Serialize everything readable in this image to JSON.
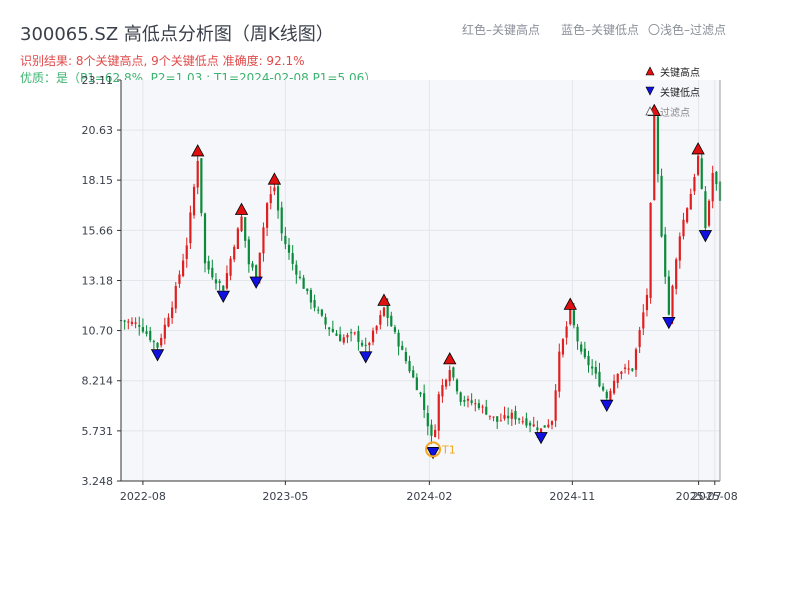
{
  "header": {
    "title": "300065.SZ 高低点分析图（周K线图）",
    "result_line": "识别结果: 8个关键高点, 9个关键低点   准确度: 92.1%",
    "quality_line": "优质：是（P1=62.8%, P2=1.03 ; T1=2024-02-08 P1=5.06）",
    "legend_high": "红色–关键高点",
    "legend_low": "蓝色–关键低点",
    "legend_filtered": "〇浅色–过滤点"
  },
  "colors": {
    "up": "#e02020",
    "down": "#0a8a3a",
    "high_marker": "#e01010",
    "low_marker": "#1010e0",
    "t1": "#f5a623",
    "plot_bg": "#f5f7fa",
    "grid": "#e3e6ea"
  },
  "chart_data": {
    "type": "candlestick",
    "title": "300065.SZ 高低点分析图（周K线图）",
    "xlabel": "",
    "ylabel": "",
    "x_range": [
      "2022-06-20",
      "2025-08-11"
    ],
    "ylim": [
      3.248,
      23.11
    ],
    "y_ticks": [
      3.248,
      5.731,
      8.214,
      10.7,
      13.18,
      15.66,
      18.15,
      20.63,
      23.11
    ],
    "y_tick_labels": [
      "3.248",
      "5.731",
      "8.214",
      "10.70",
      "13.18",
      "15.66",
      "18.15",
      "20.63",
      "23.11"
    ],
    "x_ticks": [
      {
        "date": "2022-08-01",
        "label": "2022-08"
      },
      {
        "date": "2023-05-01",
        "label": "2023-05"
      },
      {
        "date": "2024-02-01",
        "label": "2024-02"
      },
      {
        "date": "2024-11-01",
        "label": "2024-11"
      },
      {
        "date": "2025-07-01",
        "label": "2025-07"
      },
      {
        "date": "2025-08-01",
        "label": "2025-08"
      }
    ],
    "grid": true,
    "legend_position": "top-right",
    "legend": [
      "关键高点",
      "关键低点",
      "过滤点"
    ],
    "close_path": [
      [
        "2022-06-20",
        11.2
      ],
      [
        "2022-07-25",
        11.0
      ],
      [
        "2022-08-29",
        9.9
      ],
      [
        "2022-09-26",
        12.0
      ],
      [
        "2022-10-24",
        15.0
      ],
      [
        "2022-11-14",
        19.2
      ],
      [
        "2022-11-28",
        14.0
      ],
      [
        "2022-12-19",
        13.2
      ],
      [
        "2023-01-02",
        12.8
      ],
      [
        "2023-01-23",
        15.0
      ],
      [
        "2023-02-06",
        16.3
      ],
      [
        "2023-02-20",
        14.0
      ],
      [
        "2023-03-06",
        13.5
      ],
      [
        "2023-03-27",
        17.0
      ],
      [
        "2023-04-10",
        17.8
      ],
      [
        "2023-04-24",
        15.5
      ],
      [
        "2023-05-15",
        14.0
      ],
      [
        "2023-06-12",
        12.5
      ],
      [
        "2023-07-17",
        11.0
      ],
      [
        "2023-08-14",
        10.3
      ],
      [
        "2023-09-11",
        10.5
      ],
      [
        "2023-10-02",
        9.8
      ],
      [
        "2023-10-23",
        10.9
      ],
      [
        "2023-11-06",
        11.8
      ],
      [
        "2023-11-27",
        10.5
      ],
      [
        "2023-12-18",
        9.2
      ],
      [
        "2024-01-15",
        7.5
      ],
      [
        "2024-02-08",
        5.06
      ],
      [
        "2024-02-19",
        7.5
      ],
      [
        "2024-03-11",
        8.9
      ],
      [
        "2024-04-01",
        7.3
      ],
      [
        "2024-05-06",
        7.0
      ],
      [
        "2024-06-10",
        6.2
      ],
      [
        "2024-07-08",
        6.5
      ],
      [
        "2024-08-19",
        6.0
      ],
      [
        "2024-09-02",
        5.8
      ],
      [
        "2024-09-23",
        6.3
      ],
      [
        "2024-10-07",
        9.5
      ],
      [
        "2024-10-28",
        11.6
      ],
      [
        "2024-11-18",
        9.5
      ],
      [
        "2024-12-09",
        8.8
      ],
      [
        "2025-01-06",
        7.4
      ],
      [
        "2025-01-27",
        8.7
      ],
      [
        "2025-02-24",
        8.8
      ],
      [
        "2025-03-24",
        12.5
      ],
      [
        "2025-04-07",
        21.2
      ],
      [
        "2025-04-21",
        15.5
      ],
      [
        "2025-05-05",
        11.5
      ],
      [
        "2025-05-26",
        15.5
      ],
      [
        "2025-06-16",
        17.5
      ],
      [
        "2025-06-30",
        19.3
      ],
      [
        "2025-07-14",
        15.8
      ],
      [
        "2025-07-28",
        18.5
      ],
      [
        "2025-08-11",
        17.2
      ]
    ],
    "key_highs": [
      {
        "date": "2022-11-14",
        "value": 19.2
      },
      {
        "date": "2023-02-06",
        "value": 16.3
      },
      {
        "date": "2023-04-10",
        "value": 17.8
      },
      {
        "date": "2023-11-06",
        "value": 11.8
      },
      {
        "date": "2024-03-11",
        "value": 8.9
      },
      {
        "date": "2024-10-28",
        "value": 11.6
      },
      {
        "date": "2025-04-07",
        "value": 21.2
      },
      {
        "date": "2025-06-30",
        "value": 19.3
      }
    ],
    "key_lows": [
      {
        "date": "2022-08-29",
        "value": 9.9
      },
      {
        "date": "2023-01-02",
        "value": 12.8
      },
      {
        "date": "2023-03-06",
        "value": 13.5
      },
      {
        "date": "2023-10-02",
        "value": 9.8
      },
      {
        "date": "2024-02-08",
        "value": 5.06
      },
      {
        "date": "2024-09-02",
        "value": 5.8
      },
      {
        "date": "2025-01-06",
        "value": 7.4
      },
      {
        "date": "2025-05-05",
        "value": 11.5
      },
      {
        "date": "2025-07-14",
        "value": 15.8
      }
    ],
    "t1": {
      "label": "T1",
      "date": "2024-02-08",
      "value": 5.06
    }
  }
}
